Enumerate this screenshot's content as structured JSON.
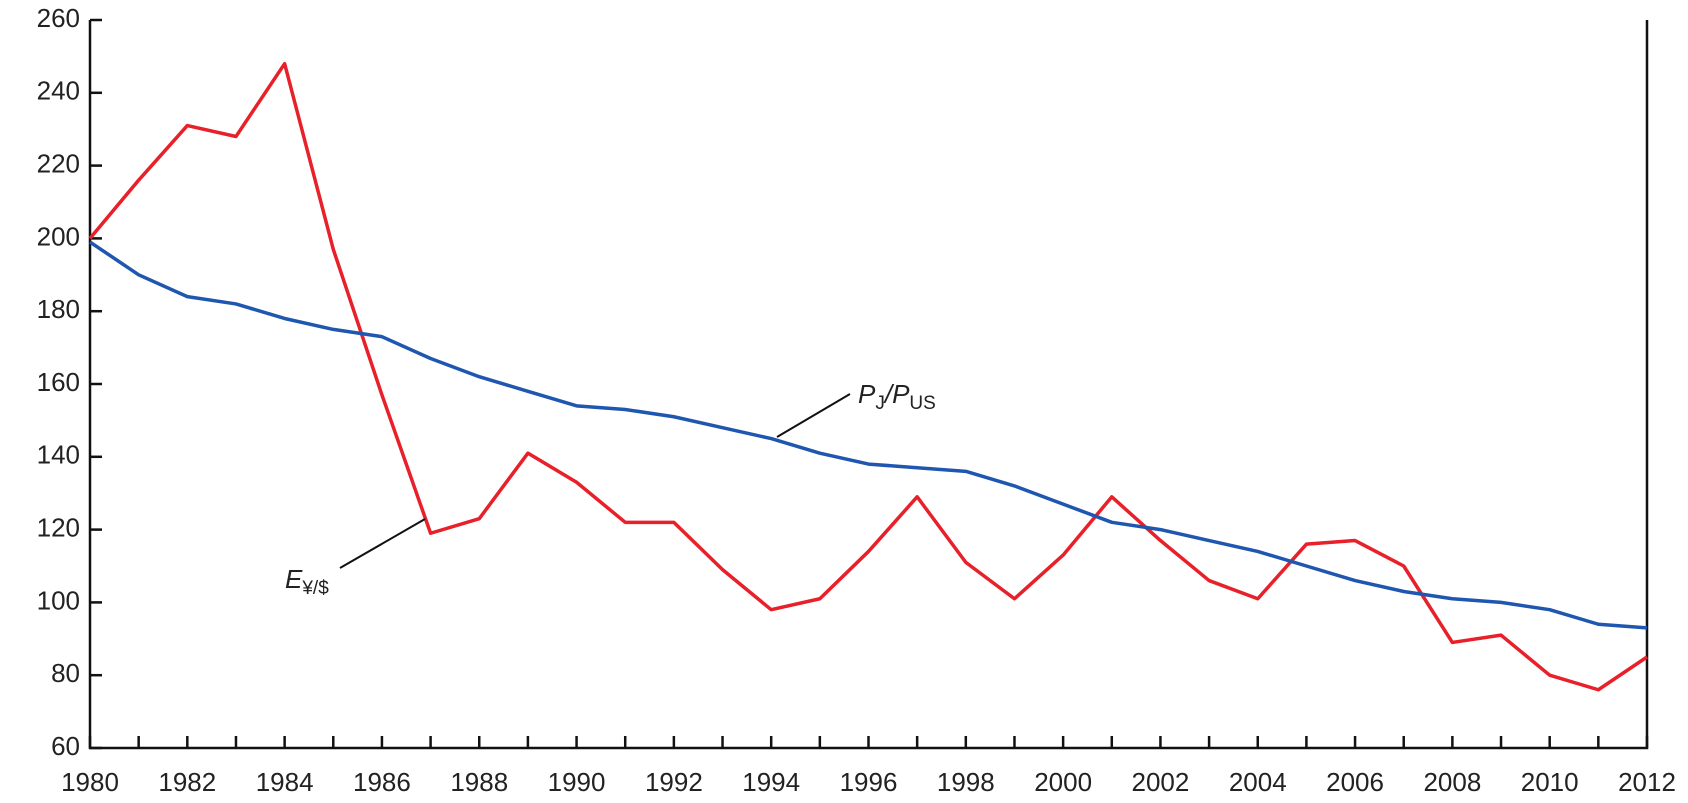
{
  "chart_data": {
    "type": "line",
    "x": [
      1980,
      1981,
      1982,
      1983,
      1984,
      1985,
      1986,
      1987,
      1988,
      1989,
      1990,
      1991,
      1992,
      1993,
      1994,
      1995,
      1996,
      1997,
      1998,
      1999,
      2000,
      2001,
      2002,
      2003,
      2004,
      2005,
      2006,
      2007,
      2008,
      2009,
      2010,
      2011,
      2012
    ],
    "series": [
      {
        "label": [
          {
            "text": "E",
            "sub": false
          },
          {
            "text": "¥/$",
            "sub": true
          }
        ],
        "color": "#e8202a",
        "values": [
          200,
          216,
          231,
          228,
          248,
          197,
          157,
          119,
          123,
          141,
          133,
          122,
          122,
          109,
          98,
          101,
          114,
          129,
          111,
          101,
          113,
          129,
          117,
          106,
          101,
          116,
          117,
          110,
          89,
          91,
          80,
          76,
          85
        ]
      },
      {
        "label": [
          {
            "text": "P",
            "sub": false
          },
          {
            "text": "J",
            "sub": true
          },
          {
            "text": "/",
            "sub": false
          },
          {
            "text": "P",
            "sub": false
          },
          {
            "text": "US",
            "sub": true
          }
        ],
        "color": "#1f56b0",
        "values": [
          199,
          190,
          184,
          182,
          178,
          175,
          173,
          167,
          162,
          158,
          154,
          153,
          151,
          148,
          145,
          141,
          138,
          137,
          136,
          132,
          127,
          122,
          120,
          117,
          114,
          110,
          106,
          103,
          101,
          100,
          98,
          94,
          93
        ]
      }
    ],
    "xlim": [
      1980,
      2012
    ],
    "xticks": [
      1980,
      1982,
      1984,
      1986,
      1988,
      1990,
      1992,
      1994,
      1996,
      1998,
      2000,
      2002,
      2004,
      2006,
      2008,
      2010,
      2012
    ],
    "xminorticks": [
      1981,
      1983,
      1985,
      1987,
      1989,
      1991,
      1993,
      1995,
      1997,
      1999,
      2001,
      2003,
      2005,
      2007,
      2009,
      2011
    ],
    "ylim": [
      60,
      260
    ],
    "yticks": [
      60,
      80,
      100,
      120,
      140,
      160,
      180,
      200,
      220,
      240,
      260
    ]
  }
}
